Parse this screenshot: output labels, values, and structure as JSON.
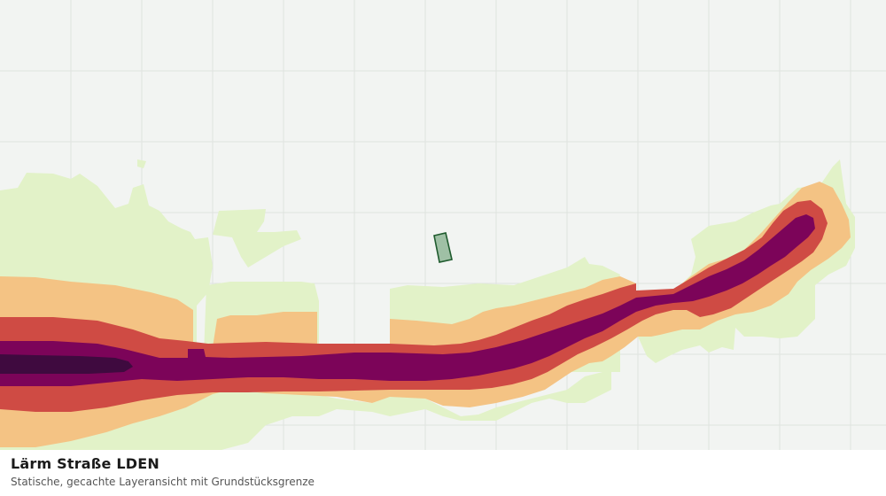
{
  "layer": {
    "title": "Lärm Straße LDEN",
    "subtitle": "Statische, gecachte Layeransicht mit Grundstücksgrenze"
  },
  "map": {
    "background_color": "#f2f4f2",
    "grid_color": "#dfe3df",
    "noise_classes_colors": [
      "#e2f2c8",
      "#f4c384",
      "#cf4b44",
      "#7c0459",
      "#3f0a3f"
    ],
    "parcel_fill": "#9fc0a5",
    "parcel_stroke": "#1f5b2e"
  }
}
